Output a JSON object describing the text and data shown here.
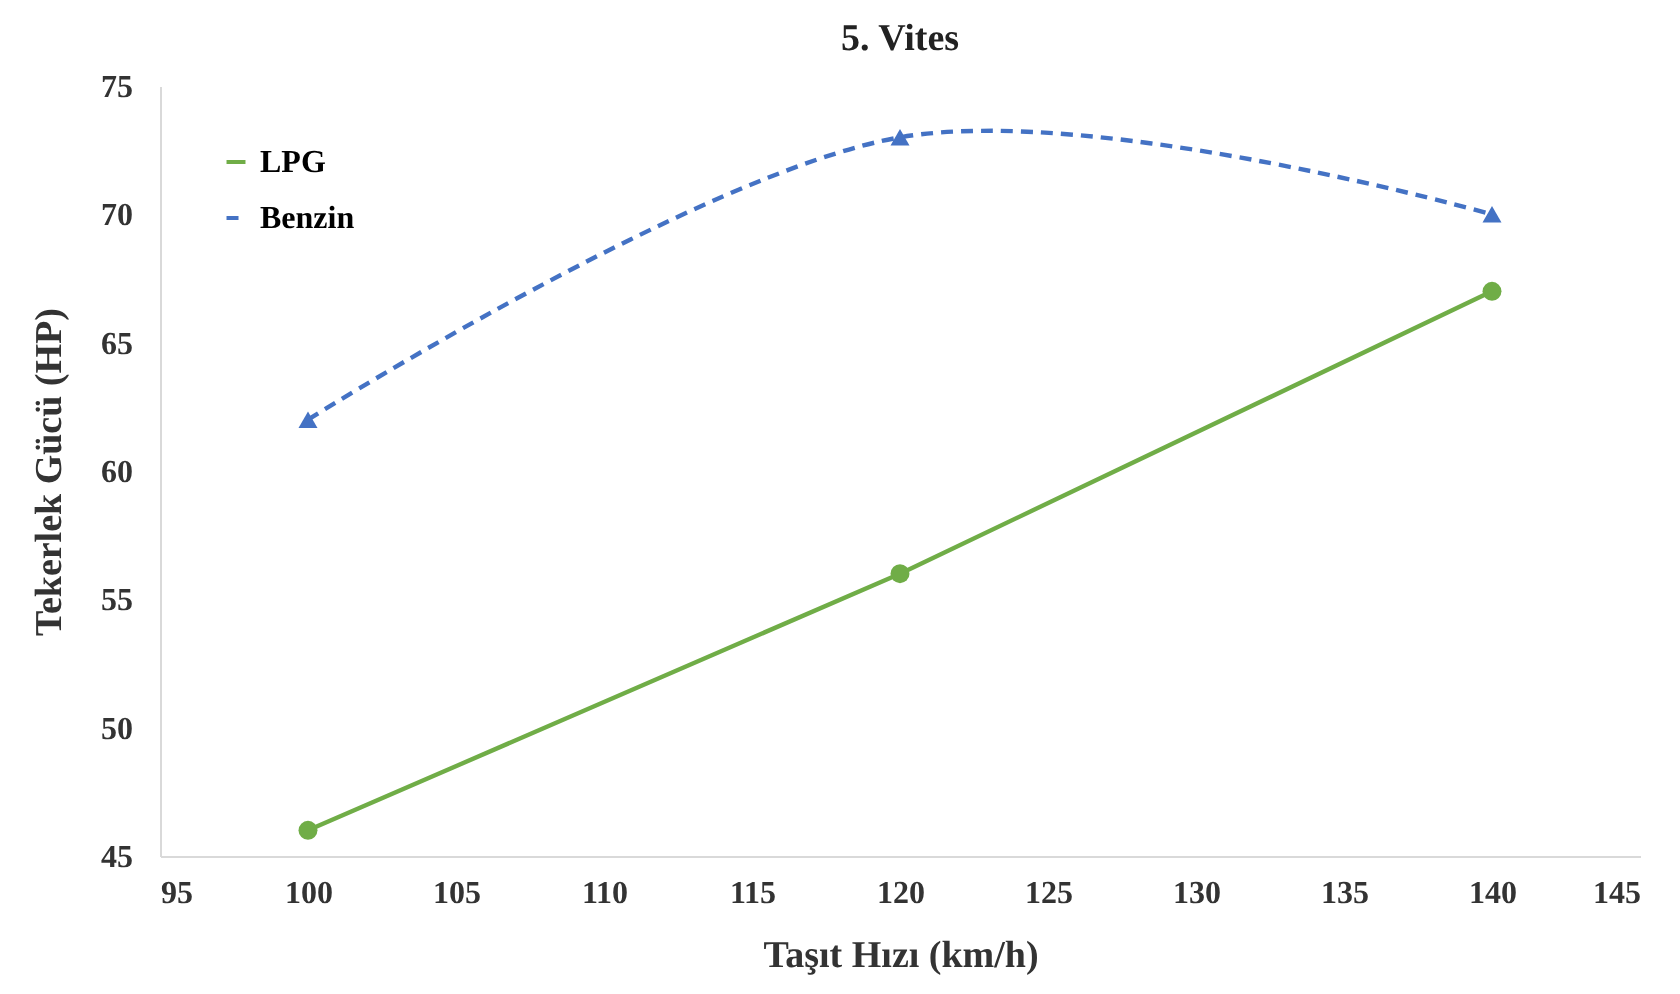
{
  "chart_data": {
    "type": "line",
    "title": "5. Vites",
    "xlabel": "Taşıt Hızı (km/h)",
    "ylabel": "Tekerlek  Gücü (HP)",
    "x": [
      100,
      120,
      140
    ],
    "series": [
      {
        "name": "LPG",
        "color": "#70ad47",
        "values": [
          46,
          56,
          67
        ],
        "marker": "circle",
        "line_style": "solid"
      },
      {
        "name": "Benzin",
        "color": "#4472c4",
        "values": [
          62,
          73,
          70
        ],
        "marker": "triangle",
        "line_style": "dashed"
      }
    ],
    "xlim": [
      95,
      145
    ],
    "xticks": [
      95,
      100,
      105,
      110,
      115,
      120,
      125,
      130,
      135,
      140,
      145
    ],
    "ylim": [
      45,
      75
    ],
    "yticks": [
      45,
      50,
      55,
      60,
      65,
      70,
      75
    ],
    "grid": false,
    "legend": "top left"
  }
}
